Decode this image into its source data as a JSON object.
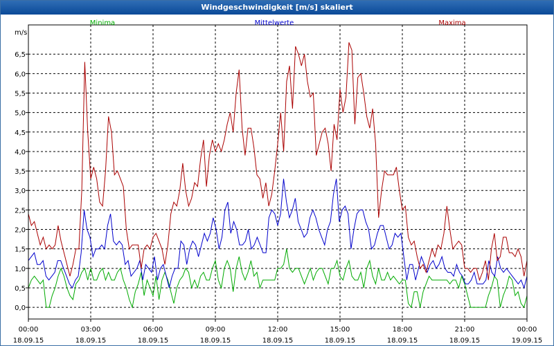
{
  "window": {
    "title": "Windgeschwindigkeit [m/s] skaliert"
  },
  "chart_data": {
    "type": "line",
    "title": "Windgeschwindigkeit [m/s] skaliert",
    "ylabel": "m/s",
    "xlabel": "",
    "ylim": [
      -0.3,
      7.25
    ],
    "xlim_hours": [
      0,
      24
    ],
    "grid": true,
    "legend_position": "top",
    "y_ticks": [
      "0,0",
      "0,5",
      "1,0",
      "1,5",
      "2,0",
      "2,5",
      "3,0",
      "3,5",
      "4,0",
      "4,5",
      "5,0",
      "5,5",
      "6,0",
      "6,5"
    ],
    "x_ticks": [
      {
        "time": "00:00",
        "date": "18.09.15"
      },
      {
        "time": "03:00",
        "date": "18.09.15"
      },
      {
        "time": "06:00",
        "date": "18.09.15"
      },
      {
        "time": "09:00",
        "date": "18.09.15"
      },
      {
        "time": "12:00",
        "date": "18.09.15"
      },
      {
        "time": "15:00",
        "date": "18.09.15"
      },
      {
        "time": "18:00",
        "date": "18.09.15"
      },
      {
        "time": "21:00",
        "date": "18.09.15"
      },
      {
        "time": "00:00",
        "date": "19.09.15"
      }
    ],
    "series": [
      {
        "name": "Minima",
        "color": "#00aa00",
        "values": [
          0.5,
          0.7,
          0.8,
          0.7,
          0.6,
          0.7,
          0.0,
          0.0,
          0.3,
          0.5,
          0.8,
          1.0,
          0.8,
          0.5,
          0.3,
          0.2,
          0.6,
          0.7,
          0.9,
          1.0,
          0.7,
          1.0,
          0.7,
          0.7,
          0.9,
          1.0,
          0.7,
          0.9,
          0.7,
          0.7,
          0.9,
          1.0,
          0.7,
          0.5,
          0.2,
          0.0,
          0.4,
          0.6,
          0.9,
          0.3,
          0.7,
          0.5,
          0.3,
          0.8,
          0.2,
          0.7,
          0.9,
          0.7,
          0.4,
          0.1,
          0.5,
          0.7,
          0.8,
          1.0,
          0.9,
          0.5,
          0.7,
          0.5,
          0.8,
          0.9,
          0.7,
          0.7,
          1.0,
          1.2,
          0.7,
          0.5,
          1.0,
          1.2,
          1.0,
          0.4,
          1.0,
          1.3,
          0.9,
          0.7,
          0.9,
          1.2,
          0.8,
          0.9,
          0.5,
          0.7,
          0.7,
          0.7,
          0.7,
          0.7,
          1.0,
          1.0,
          1.1,
          1.5,
          1.0,
          0.9,
          1.0,
          1.0,
          0.8,
          0.6,
          0.8,
          1.0,
          0.7,
          0.9,
          1.0,
          1.0,
          0.8,
          0.6,
          1.0,
          1.0,
          1.2,
          0.8,
          0.7,
          1.0,
          1.2,
          0.8,
          0.7,
          0.7,
          0.9,
          0.5,
          1.0,
          1.2,
          0.8,
          0.6,
          1.0,
          0.7,
          0.7,
          0.9,
          0.7,
          0.8,
          0.7,
          0.6,
          0.7,
          0.7,
          0.1,
          0.0,
          0.4,
          0.4,
          0.0,
          0.4,
          0.6,
          0.8,
          0.7,
          0.7,
          0.7,
          0.7,
          0.7,
          0.7,
          0.6,
          0.7,
          0.7,
          0.5,
          0.8,
          0.6,
          0.3,
          0.0,
          0.0,
          0.0,
          0.0,
          0.0,
          0.0,
          0.3,
          0.5,
          0.8,
          0.7,
          0.0,
          0.3,
          0.5,
          0.8,
          0.7,
          0.3,
          0.4,
          0.1,
          0.0,
          0.3
        ]
      },
      {
        "name": "Mittelwerte",
        "color": "#0000cc",
        "values": [
          1.2,
          1.3,
          1.4,
          1.1,
          1.1,
          1.2,
          0.8,
          0.7,
          0.8,
          0.9,
          1.2,
          1.2,
          1.0,
          0.8,
          0.6,
          0.5,
          0.7,
          0.8,
          1.4,
          2.5,
          2.0,
          1.8,
          1.3,
          1.5,
          1.5,
          1.6,
          1.5,
          2.1,
          2.4,
          1.7,
          1.6,
          1.7,
          1.6,
          1.1,
          1.2,
          0.8,
          0.9,
          1.0,
          1.2,
          0.7,
          1.1,
          1.0,
          0.9,
          1.3,
          0.7,
          1.0,
          1.1,
          0.8,
          0.5,
          0.8,
          1.0,
          1.0,
          1.7,
          1.6,
          1.1,
          1.5,
          1.7,
          1.6,
          1.3,
          1.6,
          1.9,
          1.7,
          1.9,
          2.3,
          2.0,
          1.5,
          1.8,
          2.5,
          2.7,
          1.9,
          2.2,
          2.0,
          1.6,
          1.6,
          1.7,
          2.0,
          1.5,
          1.6,
          1.8,
          1.6,
          1.4,
          1.4,
          2.3,
          2.5,
          2.4,
          2.1,
          2.4,
          3.3,
          2.7,
          2.3,
          2.5,
          2.8,
          2.2,
          2.0,
          1.8,
          1.9,
          2.3,
          2.5,
          2.3,
          2.0,
          1.8,
          1.6,
          2.0,
          2.2,
          2.9,
          3.3,
          2.2,
          2.5,
          2.6,
          2.4,
          1.5,
          2.0,
          2.4,
          2.5,
          2.5,
          2.2,
          2.0,
          1.5,
          1.6,
          1.9,
          2.1,
          2.1,
          1.8,
          1.5,
          1.6,
          1.9,
          1.8,
          1.9,
          1.3,
          0.7,
          1.1,
          1.1,
          0.7,
          1.0,
          1.3,
          1.1,
          0.9,
          1.1,
          1.2,
          1.0,
          1.1,
          1.3,
          1.0,
          0.9,
          0.9,
          0.8,
          1.1,
          0.9,
          0.8,
          0.6,
          0.6,
          0.7,
          0.9,
          0.6,
          0.6,
          0.6,
          0.7,
          1.2,
          0.9,
          0.8,
          1.3,
          1.0,
          0.9,
          1.0,
          0.9,
          0.8,
          0.7,
          0.6,
          0.7,
          0.5,
          0.8
        ]
      },
      {
        "name": "Maxima",
        "color": "#aa0000",
        "values": [
          2.4,
          2.1,
          2.2,
          1.9,
          1.6,
          1.8,
          1.5,
          1.6,
          1.5,
          1.6,
          2.1,
          1.7,
          1.4,
          1.1,
          0.8,
          1.1,
          1.5,
          1.5,
          3.0,
          6.3,
          4.5,
          3.3,
          3.6,
          3.3,
          2.7,
          2.6,
          3.5,
          4.9,
          4.5,
          3.4,
          3.5,
          3.3,
          3.1,
          2.0,
          1.5,
          1.6,
          1.6,
          1.6,
          1.0,
          1.5,
          1.6,
          1.5,
          1.8,
          1.9,
          1.7,
          1.5,
          1.1,
          1.6,
          2.4,
          2.7,
          2.6,
          3.0,
          3.7,
          3.0,
          2.6,
          2.8,
          3.2,
          3.1,
          3.8,
          4.3,
          3.1,
          3.9,
          4.3,
          4.0,
          4.2,
          4.0,
          4.3,
          4.7,
          5.0,
          4.5,
          5.5,
          6.1,
          4.6,
          3.9,
          4.6,
          4.6,
          4.1,
          3.4,
          3.3,
          2.8,
          3.2,
          2.6,
          2.9,
          3.5,
          4.2,
          5.0,
          4.0,
          5.8,
          6.2,
          5.1,
          6.7,
          6.5,
          6.2,
          6.5,
          5.8,
          5.4,
          5.5,
          3.9,
          4.2,
          4.5,
          4.6,
          4.2,
          3.5,
          4.7,
          4.3,
          5.6,
          5.0,
          5.4,
          6.8,
          6.6,
          4.7,
          5.9,
          6.0,
          5.5,
          4.9,
          4.6,
          5.1,
          4.2,
          2.3,
          3.0,
          3.5,
          3.4,
          3.4,
          3.4,
          3.6,
          3.0,
          2.5,
          2.6,
          1.8,
          1.6,
          1.7,
          1.3,
          1.0,
          1.1,
          0.9,
          1.2,
          1.5,
          1.3,
          1.6,
          1.5,
          1.9,
          2.6,
          2.0,
          1.5,
          1.6,
          1.7,
          1.6,
          1.0,
          1.0,
          0.9,
          1.0,
          1.0,
          0.7,
          0.9,
          1.2,
          0.7,
          1.5,
          1.9,
          1.2,
          1.3,
          1.8,
          1.8,
          1.4,
          1.4,
          1.3,
          1.5,
          1.3,
          0.8,
          1.2
        ]
      }
    ]
  }
}
